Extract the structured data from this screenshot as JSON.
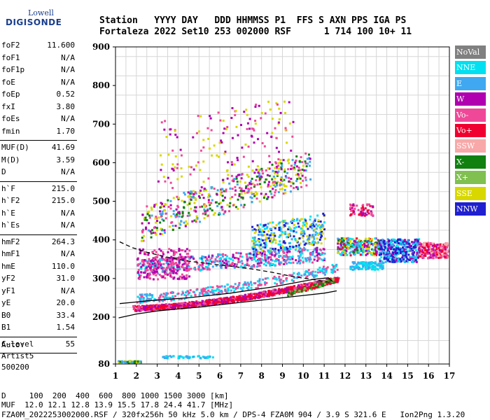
{
  "logo": {
    "line1": "Lowell",
    "line2": "DIGISONDE"
  },
  "header": {
    "labels": "Station   YYYY DAY   DDD HHMMSS P1  FFS S AXN PPS IGA PS",
    "values": "Fortaleza 2022 Set10 253 002000 RSF      1 714 100 10+ 11"
  },
  "params": [
    {
      "k": "foF2",
      "v": "11.600"
    },
    {
      "k": "foF1",
      "v": "N/A"
    },
    {
      "k": "foF1p",
      "v": "N/A"
    },
    {
      "k": "foE",
      "v": "N/A"
    },
    {
      "k": "foEp",
      "v": "0.52"
    },
    {
      "k": "fxI",
      "v": "3.80"
    },
    {
      "k": "foEs",
      "v": "N/A"
    },
    {
      "k": "fmin",
      "v": "1.70"
    },
    {
      "sep": true
    },
    {
      "k": "MUF(D)",
      "v": "41.69"
    },
    {
      "k": "M(D)",
      "v": "3.59"
    },
    {
      "k": "D",
      "v": "N/A"
    },
    {
      "sep": true
    },
    {
      "k": "h`F",
      "v": "215.0"
    },
    {
      "k": "h`F2",
      "v": "215.0"
    },
    {
      "k": "h`E",
      "v": "N/A"
    },
    {
      "k": "h`Es",
      "v": "N/A"
    },
    {
      "sep": true
    },
    {
      "k": "hmF2",
      "v": "264.3"
    },
    {
      "k": "hmF1",
      "v": "N/A"
    },
    {
      "k": "hmE",
      "v": "110.0"
    },
    {
      "k": "yF2",
      "v": "31.0"
    },
    {
      "k": "yF1",
      "v": "N/A"
    },
    {
      "k": "yE",
      "v": "20.0"
    },
    {
      "k": "B0",
      "v": "33.4"
    },
    {
      "k": "B1",
      "v": "1.54"
    },
    {
      "sep": true
    },
    {
      "k": "C-level",
      "v": "55"
    },
    {
      "sep": true
    }
  ],
  "auto": {
    "label": "Auto:",
    "program": "Artist5",
    "version": "500200"
  },
  "legend": [
    {
      "label": "NoVal",
      "color": "#808080"
    },
    {
      "label": "NNE",
      "color": "#00e0f0"
    },
    {
      "label": "E",
      "color": "#40a8f0"
    },
    {
      "label": "W",
      "color": "#b000b0"
    },
    {
      "label": "Vo-",
      "color": "#f04898"
    },
    {
      "label": "Vo+",
      "color": "#f00030"
    },
    {
      "label": "SSW",
      "color": "#f8a8a8"
    },
    {
      "label": "X-",
      "color": "#108010"
    },
    {
      "label": "X+",
      "color": "#80c050"
    },
    {
      "label": "SSE",
      "color": "#d8d800"
    },
    {
      "label": "NNW",
      "color": "#2020d0"
    }
  ],
  "footer": {
    "d_row": "D     100  200  400  600  800 1000 1500 3000 [km]",
    "muf_row": "MUF  12.0 12.1 12.8 13.9 15.5 17.8 24.4 41.7 [MHz]",
    "file_row": "FZA0M_2022253002000.RSF / 320fx256h 50 kHz 5.0 km / DPS-4 FZA0M 904 / 3.9 S 321.6 E   Ion2Png 1.3.20"
  },
  "chart_data": {
    "type": "scatter",
    "title": "",
    "xlabel": "",
    "ylabel": "",
    "x_ticks": [
      "1",
      "2",
      "3",
      "4",
      "5",
      "6",
      "7",
      "8",
      "9",
      "10",
      "11",
      "12",
      "13",
      "14",
      "15",
      "16",
      "17"
    ],
    "y_ticks": [
      "900",
      "800",
      "700",
      "600",
      "500",
      "400",
      "300",
      "200",
      "80"
    ],
    "xlim": [
      1,
      17
    ],
    "y_scale": "stepped: 200 km per division below 200 km, 100 km per division above",
    "grid": true,
    "legend_position": "right",
    "series": [
      {
        "name": "Vo+",
        "note": "F2 ordinary trace",
        "x": [
          1.8,
          2.5,
          3.5,
          4.5,
          5.5,
          6.5,
          7.5,
          8.5,
          9.5,
          10.5,
          11.0,
          11.4
        ],
        "y": [
          225,
          228,
          232,
          236,
          240,
          246,
          252,
          258,
          268,
          280,
          290,
          300
        ]
      },
      {
        "name": "X-",
        "note": "F2 extraordinary trace",
        "x": [
          9.5,
          10.5,
          11.0,
          11.5
        ],
        "y": [
          262,
          274,
          285,
          298
        ]
      },
      {
        "name": "E",
        "note": "second-hop and spread echoes",
        "x": [
          2,
          3,
          4,
          5,
          6,
          7,
          8,
          9,
          10,
          11
        ],
        "y": [
          330,
          320,
          315,
          312,
          312,
          315,
          325,
          335,
          345,
          355
        ]
      },
      {
        "name": "W",
        "note": "second-hop echoes",
        "x": [
          2,
          3,
          4,
          5,
          6,
          7,
          8,
          9,
          10
        ],
        "y": [
          460,
          455,
          460,
          470,
          480,
          500,
          520,
          540,
          560
        ]
      },
      {
        "name": "SSE",
        "note": "multi-hop echoes",
        "x": [
          3,
          4,
          5,
          6,
          7,
          8,
          9,
          10
        ],
        "y": [
          500,
          540,
          580,
          600,
          620,
          640,
          600,
          560
        ]
      },
      {
        "name": "NNW",
        "note": "spread F echoes",
        "x": [
          11.5,
          12,
          12.5,
          13,
          13.5,
          14,
          14.5,
          15,
          15.5
        ],
        "y": [
          390,
          385,
          380,
          380,
          385,
          380,
          375,
          370,
          375
        ]
      },
      {
        "name": "Vo-",
        "note": "spread F echoes",
        "x": [
          12.5,
          13,
          14,
          15,
          15.5,
          16,
          16.5
        ],
        "y": [
          355,
          360,
          365,
          360,
          375,
          380,
          385
        ]
      }
    ]
  }
}
